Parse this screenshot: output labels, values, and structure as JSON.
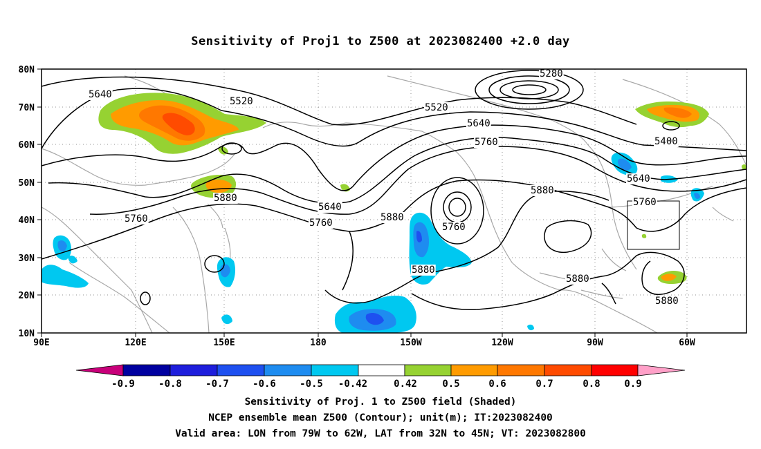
{
  "title": "Sensitivity of Proj1 to Z500 at 2023082400 +2.0 day",
  "map": {
    "lat_labels": [
      "80N",
      "70N",
      "60N",
      "50N",
      "40N",
      "30N",
      "20N",
      "10N"
    ],
    "lon_labels": [
      "90E",
      "120E",
      "150E",
      "180",
      "150W",
      "120W",
      "90W",
      "60W"
    ],
    "contour_labels": [
      {
        "text": "5280"
      },
      {
        "text": "5640"
      },
      {
        "text": "5520"
      },
      {
        "text": "5520"
      },
      {
        "text": "5640"
      },
      {
        "text": "5760"
      },
      {
        "text": "5400"
      },
      {
        "text": "5640"
      },
      {
        "text": "5760"
      },
      {
        "text": "5880"
      },
      {
        "text": "5880"
      },
      {
        "text": "5880"
      },
      {
        "text": "5760"
      },
      {
        "text": "5640"
      },
      {
        "text": "5760"
      },
      {
        "text": "5760"
      },
      {
        "text": "5880"
      },
      {
        "text": "5880"
      },
      {
        "text": "5880"
      }
    ],
    "colors": {
      "neg_09": "#c8007a",
      "neg_08": "#0000a0",
      "neg_07": "#1e1edc",
      "neg_06": "#1e50f0",
      "neg_05": "#1e8cf0",
      "neg_042": "#00c8f0",
      "pos_042": "#96d232",
      "pos_05": "#ff9b00",
      "pos_06": "#ff7800",
      "pos_07": "#ff4b00",
      "pos_08": "#ff0000",
      "pos_09": "#ffa0c8",
      "land": "#a8a8a8",
      "contour": "#000000"
    }
  },
  "colorbar": {
    "labels": [
      "-0.9",
      "-0.8",
      "-0.7",
      "-0.6",
      "-0.5",
      "-0.42",
      "0.42",
      "0.5",
      "0.6",
      "0.7",
      "0.8",
      "0.9"
    ]
  },
  "caption": {
    "line1": "Sensitivity of Proj. 1 to Z500 field (Shaded)",
    "line2": "NCEP ensemble mean Z500 (Contour); unit(m); IT:2023082400",
    "line3": "Valid area: LON from 79W to 62W, LAT from 32N to 45N; VT: 2023082800"
  }
}
